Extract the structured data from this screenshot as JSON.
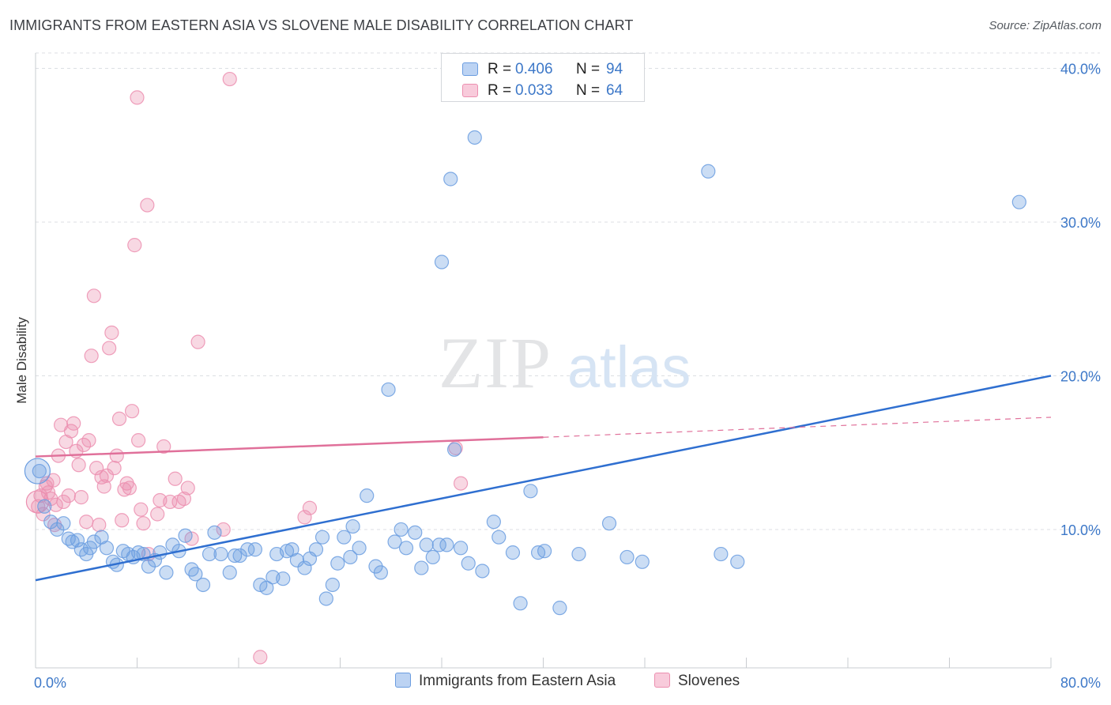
{
  "header": {
    "title": "IMMIGRANTS FROM EASTERN ASIA VS SLOVENE MALE DISABILITY CORRELATION CHART",
    "source": "Source: ZipAtlas.com"
  },
  "watermark": {
    "zip": "ZIP",
    "atlas": "atlas"
  },
  "legend": {
    "rows": [
      {
        "r_label": "R =",
        "r_value": "0.406",
        "n_label": "N =",
        "n_value": "94",
        "color": "#6b9de0"
      },
      {
        "r_label": "R =",
        "r_value": "0.033",
        "n_label": "N =",
        "n_value": "64",
        "color": "#ec8fb0"
      }
    ]
  },
  "bottom_legend": {
    "items": [
      {
        "label": "Immigrants from Eastern Asia",
        "color": "#6b9de0"
      },
      {
        "label": "Slovenes",
        "color": "#ec8fb0"
      }
    ]
  },
  "chart_data": {
    "type": "scatter",
    "title": "IMMIGRANTS FROM EASTERN ASIA VS SLOVENE MALE DISABILITY CORRELATION CHART",
    "xlabel": "",
    "ylabel": "Male Disability",
    "xlim": [
      0,
      80
    ],
    "ylim": [
      1,
      41
    ],
    "x_tick_labels": [
      "0.0%",
      "80.0%"
    ],
    "y_ticks": [
      10,
      20,
      30,
      40
    ],
    "y_tick_labels": [
      "10.0%",
      "20.0%",
      "30.0%",
      "40.0%"
    ],
    "grid": "horizontal dashed",
    "legend_position": "top-center",
    "colors": {
      "blue": "#6b9de0",
      "blue_line": "#2f6fd0",
      "pink": "#ec8fb0",
      "pink_line": "#e0709a"
    },
    "series": [
      {
        "name": "Immigrants from Eastern Asia",
        "color": "#6b9de0",
        "points": [
          [
            0.3,
            13.8
          ],
          [
            0.7,
            11.5
          ],
          [
            1.2,
            10.5
          ],
          [
            1.7,
            10.0
          ],
          [
            2.2,
            10.4
          ],
          [
            2.6,
            9.4
          ],
          [
            2.9,
            9.2
          ],
          [
            3.3,
            9.3
          ],
          [
            3.6,
            8.7
          ],
          [
            4.0,
            8.4
          ],
          [
            4.3,
            8.8
          ],
          [
            4.6,
            9.2
          ],
          [
            5.2,
            9.5
          ],
          [
            5.6,
            8.8
          ],
          [
            6.1,
            7.9
          ],
          [
            6.4,
            7.7
          ],
          [
            6.9,
            8.6
          ],
          [
            7.3,
            8.4
          ],
          [
            7.7,
            8.2
          ],
          [
            8.1,
            8.5
          ],
          [
            8.5,
            8.4
          ],
          [
            8.9,
            7.6
          ],
          [
            9.4,
            8.0
          ],
          [
            9.8,
            8.5
          ],
          [
            10.3,
            7.2
          ],
          [
            10.8,
            9.0
          ],
          [
            11.3,
            8.6
          ],
          [
            11.8,
            9.6
          ],
          [
            12.3,
            7.4
          ],
          [
            12.6,
            7.1
          ],
          [
            13.2,
            6.4
          ],
          [
            13.7,
            8.4
          ],
          [
            14.1,
            9.8
          ],
          [
            14.6,
            8.4
          ],
          [
            15.3,
            7.2
          ],
          [
            15.7,
            8.3
          ],
          [
            16.1,
            8.3
          ],
          [
            16.7,
            8.7
          ],
          [
            17.3,
            8.7
          ],
          [
            17.7,
            6.4
          ],
          [
            18.2,
            6.2
          ],
          [
            18.7,
            6.9
          ],
          [
            19.0,
            8.4
          ],
          [
            19.5,
            6.8
          ],
          [
            19.8,
            8.6
          ],
          [
            20.2,
            8.7
          ],
          [
            20.6,
            8.0
          ],
          [
            21.2,
            7.5
          ],
          [
            21.6,
            8.1
          ],
          [
            22.1,
            8.7
          ],
          [
            22.6,
            9.5
          ],
          [
            22.9,
            5.5
          ],
          [
            23.4,
            6.4
          ],
          [
            23.8,
            7.8
          ],
          [
            24.3,
            9.5
          ],
          [
            24.8,
            8.2
          ],
          [
            25.5,
            8.8
          ],
          [
            25.0,
            10.2
          ],
          [
            26.1,
            12.2
          ],
          [
            26.8,
            7.6
          ],
          [
            27.2,
            7.2
          ],
          [
            27.8,
            19.1
          ],
          [
            28.3,
            9.2
          ],
          [
            28.8,
            10.0
          ],
          [
            29.2,
            8.8
          ],
          [
            29.9,
            9.8
          ],
          [
            30.4,
            7.5
          ],
          [
            30.8,
            9.0
          ],
          [
            31.3,
            8.2
          ],
          [
            31.8,
            9.0
          ],
          [
            32.4,
            9.0
          ],
          [
            32.0,
            27.4
          ],
          [
            32.7,
            32.8
          ],
          [
            33.0,
            15.2
          ],
          [
            33.5,
            8.8
          ],
          [
            34.1,
            7.8
          ],
          [
            34.6,
            35.5
          ],
          [
            35.2,
            7.3
          ],
          [
            36.1,
            10.5
          ],
          [
            36.5,
            9.5
          ],
          [
            37.6,
            8.5
          ],
          [
            38.2,
            5.2
          ],
          [
            39.0,
            12.5
          ],
          [
            39.6,
            8.5
          ],
          [
            40.1,
            8.6
          ],
          [
            41.3,
            4.9
          ],
          [
            42.8,
            8.4
          ],
          [
            45.2,
            10.4
          ],
          [
            46.6,
            8.2
          ],
          [
            47.8,
            7.9
          ],
          [
            53.0,
            33.3
          ],
          [
            54.0,
            8.4
          ],
          [
            55.3,
            7.9
          ],
          [
            77.5,
            31.3
          ]
        ],
        "trend": {
          "x": [
            0,
            80
          ],
          "y": [
            6.7,
            20.0
          ]
        }
      },
      {
        "name": "Slovenes",
        "color": "#ec8fb0",
        "points": [
          [
            0.2,
            11.5
          ],
          [
            0.4,
            12.2
          ],
          [
            0.6,
            11.0
          ],
          [
            0.8,
            12.8
          ],
          [
            1.0,
            12.4
          ],
          [
            1.2,
            12.0
          ],
          [
            1.4,
            13.2
          ],
          [
            1.6,
            11.6
          ],
          [
            1.8,
            14.8
          ],
          [
            2.0,
            16.8
          ],
          [
            2.2,
            11.8
          ],
          [
            2.4,
            15.7
          ],
          [
            2.6,
            12.2
          ],
          [
            2.8,
            16.4
          ],
          [
            3.0,
            16.9
          ],
          [
            3.2,
            15.1
          ],
          [
            3.4,
            14.2
          ],
          [
            3.6,
            12.1
          ],
          [
            3.8,
            15.5
          ],
          [
            4.0,
            10.5
          ],
          [
            4.2,
            15.8
          ],
          [
            4.4,
            21.3
          ],
          [
            4.6,
            25.2
          ],
          [
            4.8,
            14.0
          ],
          [
            5.0,
            10.3
          ],
          [
            5.2,
            13.4
          ],
          [
            5.4,
            12.8
          ],
          [
            5.6,
            13.5
          ],
          [
            5.8,
            21.8
          ],
          [
            6.0,
            22.8
          ],
          [
            6.2,
            14.0
          ],
          [
            6.4,
            14.8
          ],
          [
            6.6,
            17.2
          ],
          [
            6.8,
            10.6
          ],
          [
            7.0,
            12.6
          ],
          [
            7.2,
            13.0
          ],
          [
            7.4,
            12.7
          ],
          [
            7.6,
            17.7
          ],
          [
            7.8,
            28.5
          ],
          [
            8.0,
            38.1
          ],
          [
            8.1,
            15.8
          ],
          [
            8.3,
            11.3
          ],
          [
            8.5,
            10.4
          ],
          [
            8.9,
            8.4
          ],
          [
            8.8,
            31.1
          ],
          [
            9.6,
            11.0
          ],
          [
            9.8,
            11.9
          ],
          [
            10.1,
            15.4
          ],
          [
            10.6,
            11.8
          ],
          [
            11.0,
            13.3
          ],
          [
            11.3,
            11.8
          ],
          [
            11.7,
            12.0
          ],
          [
            12.0,
            12.7
          ],
          [
            12.3,
            9.4
          ],
          [
            12.8,
            22.2
          ],
          [
            14.8,
            10.0
          ],
          [
            15.3,
            39.3
          ],
          [
            17.7,
            1.7
          ],
          [
            21.2,
            10.8
          ],
          [
            21.6,
            11.4
          ],
          [
            33.1,
            15.3
          ],
          [
            33.5,
            13.0
          ],
          [
            0.9,
            13.0
          ],
          [
            1.5,
            10.3
          ]
        ],
        "trend": {
          "x": [
            0,
            40
          ],
          "y": [
            14.75,
            16.0
          ]
        },
        "trend_extension": {
          "x": [
            40,
            80
          ],
          "y": [
            16.0,
            17.3
          ]
        }
      }
    ]
  }
}
